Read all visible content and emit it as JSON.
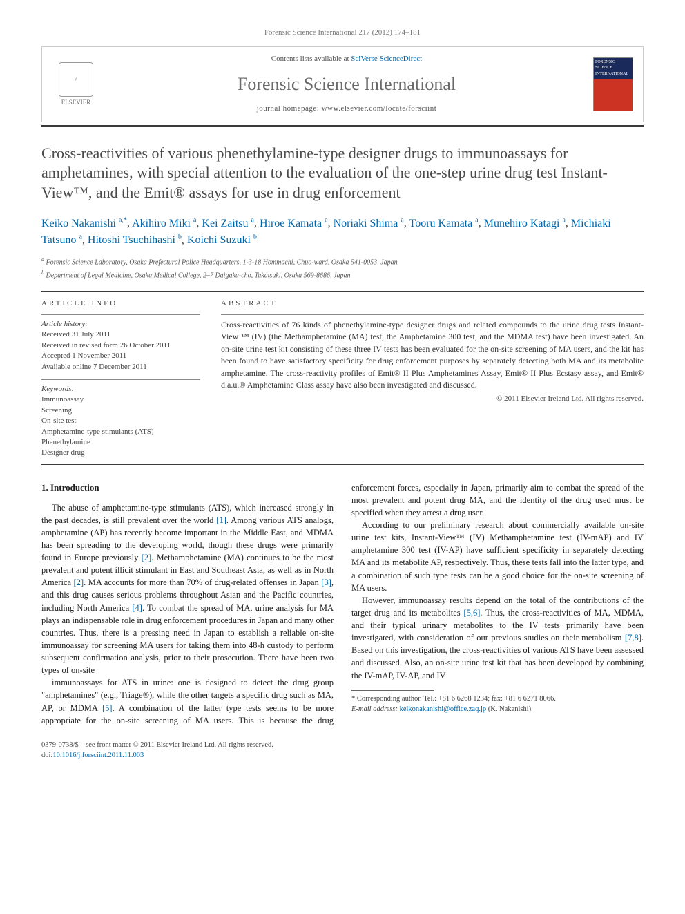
{
  "header": {
    "citation": "Forensic Science International 217 (2012) 174–181",
    "contents_prefix": "Contents lists available at ",
    "contents_link": "SciVerse ScienceDirect",
    "journal": "Forensic Science International",
    "homepage_prefix": "journal homepage: ",
    "homepage_url": "www.elsevier.com/locate/forsciint",
    "elsevier_label": "ELSEVIER",
    "cover_text": "FORENSIC SCIENCE INTERNATIONAL"
  },
  "title": "Cross-reactivities of various phenethylamine-type designer drugs to immunoassays for amphetamines, with special attention to the evaluation of the one-step urine drug test Instant-View™, and the Emit® assays for use in drug enforcement",
  "authors_html": "Keiko Nakanishi <span class='sup'>a,*</span>, Akihiro Miki <span class='sup'>a</span>, Kei Zaitsu <span class='sup'>a</span>, Hiroe Kamata <span class='sup'>a</span>, Noriaki Shima <span class='sup'>a</span>, Tooru Kamata <span class='sup'>a</span>, Munehiro Katagi <span class='sup'>a</span>, Michiaki Tatsuno <span class='sup'>a</span>, Hitoshi Tsuchihashi <span class='sup'>b</span>, Koichi Suzuki <span class='sup'>b</span>",
  "affiliations": [
    {
      "marker": "a",
      "text": "Forensic Science Laboratory, Osaka Prefectural Police Headquarters, 1-3-18 Hommachi, Chuo-ward, Osaka 541-0053, Japan"
    },
    {
      "marker": "b",
      "text": "Department of Legal Medicine, Osaka Medical College, 2–7 Daigaku-cho, Takatsuki, Osaka 569-8686, Japan"
    }
  ],
  "article_info": {
    "head": "ARTICLE INFO",
    "history_label": "Article history:",
    "history": [
      "Received 31 July 2011",
      "Received in revised form 26 October 2011",
      "Accepted 1 November 2011",
      "Available online 7 December 2011"
    ],
    "keywords_label": "Keywords:",
    "keywords": [
      "Immunoassay",
      "Screening",
      "On-site test",
      "Amphetamine-type stimulants (ATS)",
      "Phenethylamine",
      "Designer drug"
    ]
  },
  "abstract": {
    "head": "ABSTRACT",
    "text": "Cross-reactivities of 76 kinds of phenethylamine-type designer drugs and related compounds to the urine drug tests Instant-View ™ (IV) (the Methamphetamine (MA) test, the Amphetamine 300 test, and the MDMA test) have been investigated. An on-site urine test kit consisting of these three IV tests has been evaluated for the on-site screening of MA users, and the kit has been found to have satisfactory specificity for drug enforcement purposes by separately detecting both MA and its metabolite amphetamine. The cross-reactivity profiles of Emit® II Plus Amphetamines Assay, Emit® II Plus Ecstasy assay, and Emit® d.a.u.® Amphetamine Class assay have also been investigated and discussed.",
    "copyright": "© 2011 Elsevier Ireland Ltd. All rights reserved."
  },
  "section1": {
    "head": "1. Introduction",
    "p1": "The abuse of amphetamine-type stimulants (ATS), which increased strongly in the past decades, is still prevalent over the world [1]. Among various ATS analogs, amphetamine (AP) has recently become important in the Middle East, and MDMA has been spreading to the developing world, though these drugs were primarily found in Europe previously [2]. Methamphetamine (MA) continues to be the most prevalent and potent illicit stimulant in East and Southeast Asia, as well as in North America [2]. MA accounts for more than 70% of drug-related offenses in Japan [3], and this drug causes serious problems throughout Asian and the Pacific countries, including North America [4]. To combat the spread of MA, urine analysis for MA plays an indispensable role in drug enforcement procedures in Japan and many other countries. Thus, there is a pressing need in Japan to establish a reliable on-site immunoassay for screening MA users for taking them into 48-h custody to perform subsequent confirmation analysis, prior to their prosecution. There have been two types of on-site",
    "p2": "immunoassays for ATS in urine: one is designed to detect the drug group \"amphetamines\" (e.g., Triage®), while the other targets a specific drug such as MA, AP, or MDMA [5]. A combination of the latter type tests seems to be more appropriate for the on-site screening of MA users. This is because the drug enforcement forces, especially in Japan, primarily aim to combat the spread of the most prevalent and potent drug MA, and the identity of the drug used must be specified when they arrest a drug user.",
    "p3": "According to our preliminary research about commercially available on-site urine test kits, Instant-View™ (IV) Methamphetamine test (IV-mAP) and IV amphetamine 300 test (IV-AP) have sufficient specificity in separately detecting MA and its metabolite AP, respectively. Thus, these tests fall into the latter type, and a combination of such type tests can be a good choice for the on-site screening of MA users.",
    "p4": "However, immunoassay results depend on the total of the contributions of the target drug and its metabolites [5,6]. Thus, the cross-reactivities of MA, MDMA, and their typical urinary metabolites to the IV tests primarily have been investigated, with consideration of our previous studies on their metabolism [7,8]. Based on this investigation, the cross-reactivities of various ATS have been assessed and discussed. Also, an on-site urine test kit that has been developed by combining the IV-mAP, IV-AP, and IV"
  },
  "corresponding": {
    "label": "* Corresponding author. Tel.: +81 6 6268 1234; fax: +81 6 6271 8066.",
    "email_label": "E-mail address: ",
    "email": "keikonakanishi@office.zaq.jp",
    "email_suffix": " (K. Nakanishi)."
  },
  "footer": {
    "line1": "0379-0738/$ – see front matter © 2011 Elsevier Ireland Ltd. All rights reserved.",
    "doi_label": "doi:",
    "doi": "10.1016/j.forsciint.2011.11.003"
  },
  "links": {
    "ref_color": "#0066aa"
  }
}
